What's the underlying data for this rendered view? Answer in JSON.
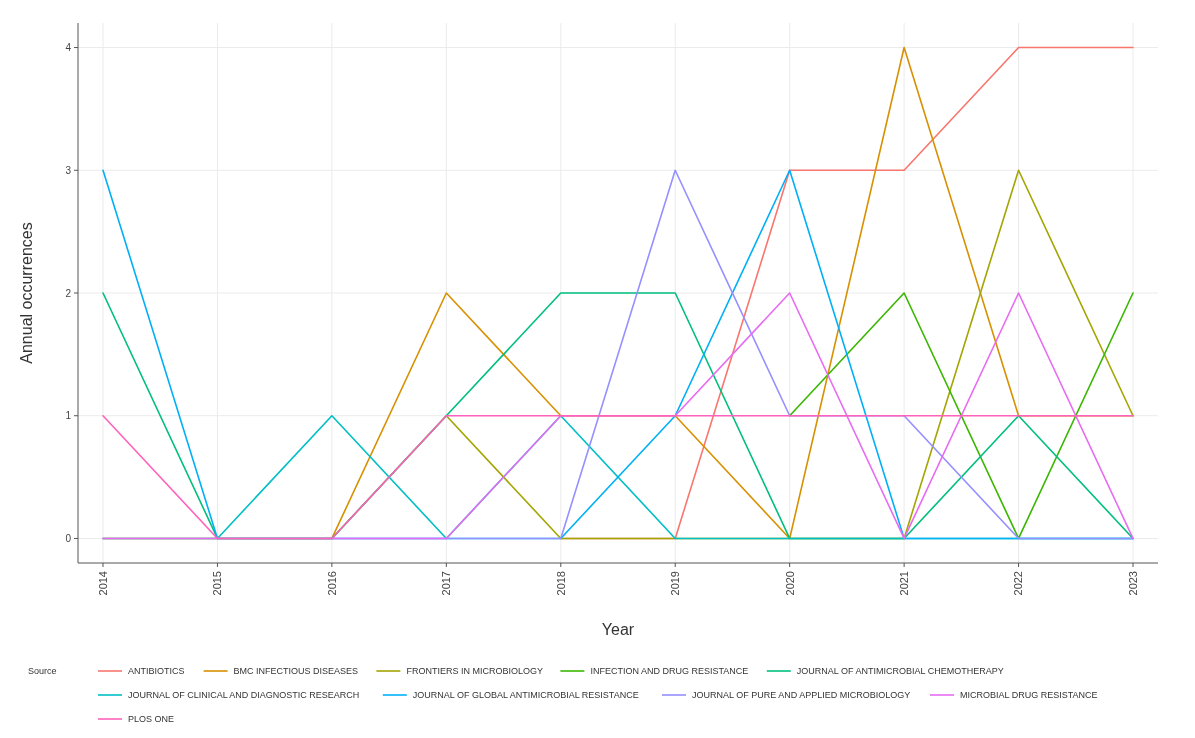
{
  "chart_data": {
    "type": "line",
    "xlabel": "Year",
    "ylabel": "Annual occurrences",
    "legend_title": "Source",
    "legend": "bottom",
    "grid": true,
    "line_style": "solid",
    "marker": "none",
    "categories": [
      "2014",
      "2015",
      "2016",
      "2017",
      "2018",
      "2019",
      "2020",
      "2021",
      "2022",
      "2023"
    ],
    "ylim": [
      -0.2,
      4.2
    ],
    "yticks": [
      0,
      1,
      2,
      3,
      4
    ],
    "series": [
      {
        "name": "ANTIBIOTICS",
        "color": "#f8766d",
        "values": [
          null,
          null,
          null,
          null,
          0,
          0,
          3,
          3,
          4,
          4
        ]
      },
      {
        "name": "BMC INFECTIOUS DISEASES",
        "color": "#d89000",
        "values": [
          0,
          0,
          0,
          2,
          1,
          1,
          0,
          4,
          1,
          1
        ]
      },
      {
        "name": "FRONTIERS IN MICROBIOLOGY",
        "color": "#a3a500",
        "values": [
          null,
          null,
          0,
          1,
          0,
          0,
          0,
          0,
          3,
          1
        ]
      },
      {
        "name": "INFECTION AND DRUG RESISTANCE",
        "color": "#39b600",
        "values": [
          null,
          null,
          null,
          null,
          null,
          null,
          1,
          2,
          0,
          2
        ]
      },
      {
        "name": "JOURNAL OF ANTIMICROBIAL CHEMOTHERAPY",
        "color": "#00bf7d",
        "values": [
          2,
          0,
          0,
          1,
          2,
          2,
          0,
          0,
          1,
          0
        ]
      },
      {
        "name": "JOURNAL OF CLINICAL AND DIAGNOSTIC RESEARCH",
        "color": "#00bfc4",
        "values": [
          0,
          0,
          1,
          0,
          1,
          0,
          0,
          0,
          0,
          0
        ]
      },
      {
        "name": "JOURNAL OF GLOBAL ANTIMICROBIAL RESISTANCE",
        "color": "#00b0f6",
        "values": [
          3,
          0,
          0,
          0,
          0,
          1,
          3,
          0,
          0,
          0
        ]
      },
      {
        "name": "JOURNAL OF PURE AND APPLIED MICROBIOLOGY",
        "color": "#9590ff",
        "values": [
          null,
          null,
          0,
          0,
          0,
          3,
          1,
          1,
          0,
          0
        ]
      },
      {
        "name": "MICROBIAL DRUG RESISTANCE",
        "color": "#e76bf3",
        "values": [
          0,
          0,
          0,
          0,
          1,
          1,
          2,
          0,
          2,
          0
        ]
      },
      {
        "name": "PLOS ONE",
        "color": "#ff62bc",
        "values": [
          1,
          0,
          0,
          1,
          1,
          1,
          1,
          1,
          1,
          1
        ]
      }
    ]
  }
}
